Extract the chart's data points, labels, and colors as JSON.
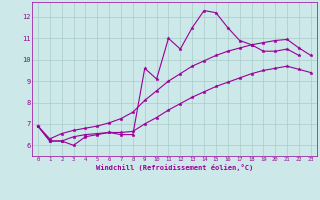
{
  "x_values": [
    0,
    1,
    2,
    3,
    4,
    5,
    6,
    7,
    8,
    9,
    10,
    11,
    12,
    13,
    14,
    15,
    16,
    17,
    18,
    19,
    20,
    21,
    22,
    23
  ],
  "line_main": [
    6.9,
    6.2,
    6.2,
    6.0,
    6.4,
    6.5,
    6.6,
    6.5,
    6.5,
    9.6,
    9.1,
    11.0,
    10.5,
    11.5,
    12.3,
    12.2,
    11.5,
    10.9,
    10.7,
    10.4,
    10.4,
    10.5,
    10.2,
    null
  ],
  "line_upper": [
    6.9,
    6.3,
    6.55,
    6.7,
    6.8,
    6.9,
    7.05,
    7.25,
    7.55,
    8.1,
    8.55,
    9.0,
    9.35,
    9.7,
    9.95,
    10.2,
    10.4,
    10.55,
    10.7,
    10.8,
    10.9,
    10.95,
    10.55,
    10.2
  ],
  "line_lower": [
    6.9,
    6.2,
    6.2,
    6.4,
    6.5,
    6.55,
    6.6,
    6.6,
    6.65,
    7.0,
    7.3,
    7.65,
    7.95,
    8.25,
    8.5,
    8.75,
    8.95,
    9.15,
    9.35,
    9.5,
    9.6,
    9.7,
    9.55,
    9.4
  ],
  "color": "#990099",
  "bg_color": "#cce8e8",
  "grid_color": "#aacccc",
  "xlabel": "Windchill (Refroidissement éolien,°C)",
  "xlim": [
    -0.5,
    23.5
  ],
  "ylim": [
    5.5,
    12.7
  ],
  "yticks": [
    6,
    7,
    8,
    9,
    10,
    11,
    12
  ],
  "xticks": [
    0,
    1,
    2,
    3,
    4,
    5,
    6,
    7,
    8,
    9,
    10,
    11,
    12,
    13,
    14,
    15,
    16,
    17,
    18,
    19,
    20,
    21,
    22,
    23
  ]
}
